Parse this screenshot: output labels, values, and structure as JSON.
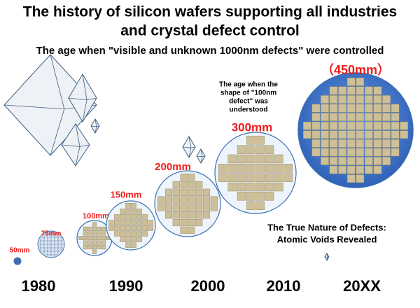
{
  "header": {
    "title_lines": [
      "The history of silicon wafers supporting all industries",
      "and crystal defect control"
    ],
    "subtitle": "The age when \"visible and unknown 1000nm defects\" were controlled"
  },
  "wafers": [
    {
      "label": "50mm"
    },
    {
      "label": "75mm"
    },
    {
      "label": "100mm"
    },
    {
      "label": "150mm"
    },
    {
      "label": "200mm"
    },
    {
      "label": "300mm"
    },
    {
      "label": "（450mm）"
    }
  ],
  "annotations": {
    "note_100nm": [
      "The age when the",
      "shape of \"100nm",
      "defect\" was",
      "understood"
    ],
    "note_atomic": [
      "The True Nature of Defects:",
      "Atomic Voids Revealed"
    ]
  },
  "years": [
    "1980",
    "1990",
    "2000",
    "2010",
    "20XX"
  ]
}
